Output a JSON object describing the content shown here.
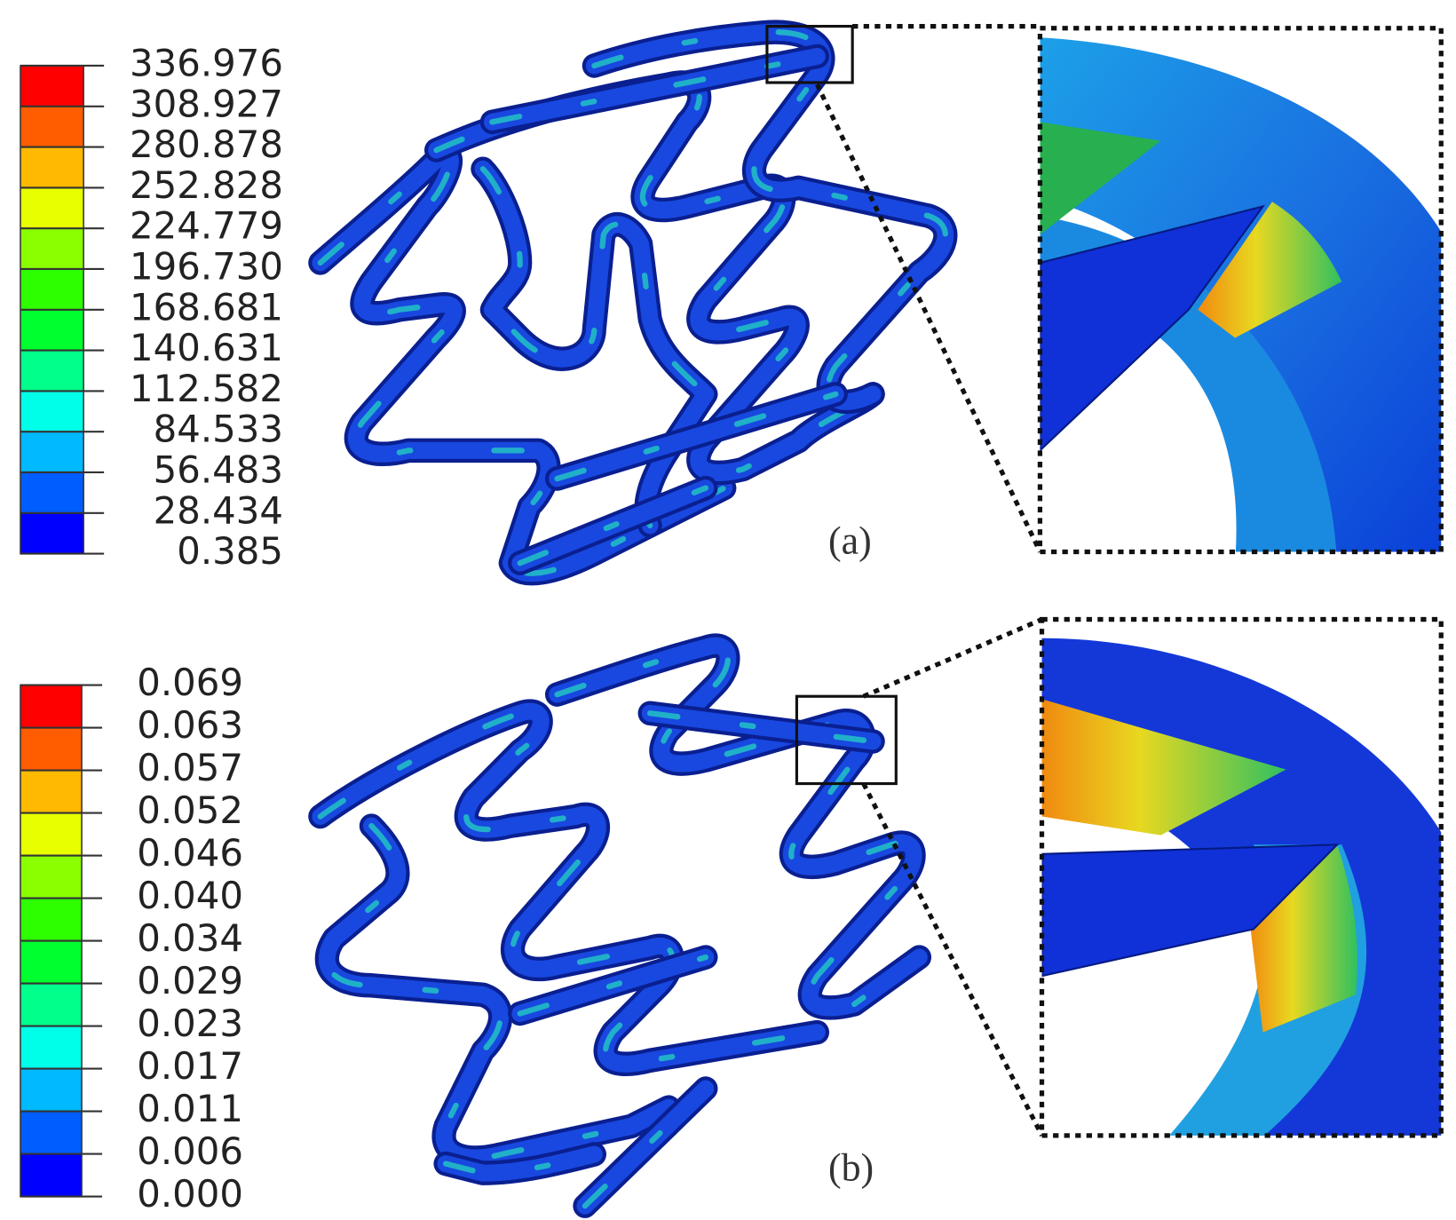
{
  "panels": [
    {
      "label": "(a)",
      "colorbar_labels": [
        "336.976",
        "308.927",
        "280.878",
        "252.828",
        "224.779",
        "196.730",
        "168.681",
        "140.631",
        "112.582",
        "84.533",
        "56.483",
        "28.434",
        "0.385"
      ]
    },
    {
      "label": "(b)",
      "colorbar_labels": [
        "0.069",
        "0.063",
        "0.057",
        "0.052",
        "0.046",
        "0.040",
        "0.034",
        "0.029",
        "0.023",
        "0.017",
        "0.011",
        "0.006",
        "0.000"
      ]
    }
  ]
}
